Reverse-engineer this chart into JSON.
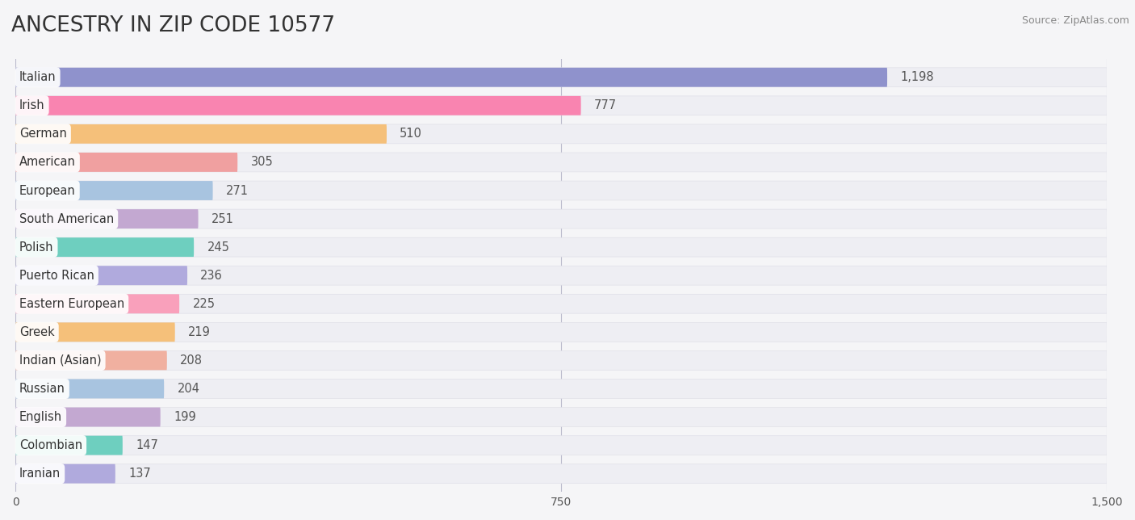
{
  "title": "ANCESTRY IN ZIP CODE 10577",
  "source": "Source: ZipAtlas.com",
  "categories": [
    "Italian",
    "Irish",
    "German",
    "American",
    "European",
    "South American",
    "Polish",
    "Puerto Rican",
    "Eastern European",
    "Greek",
    "Indian (Asian)",
    "Russian",
    "English",
    "Colombian",
    "Iranian"
  ],
  "values": [
    1198,
    777,
    510,
    305,
    271,
    251,
    245,
    236,
    225,
    219,
    208,
    204,
    199,
    147,
    137
  ],
  "colors": [
    "#8f92cc",
    "#f984b0",
    "#f5c07a",
    "#f0a0a0",
    "#a8c4e0",
    "#c3a8d1",
    "#6ecfbf",
    "#b0aadd",
    "#f9a0bb",
    "#f5c07a",
    "#f0b0a0",
    "#a8c4e0",
    "#c3a8d1",
    "#6ecfbf",
    "#b0aadd"
  ],
  "row_bg_color": "#ebebf0",
  "row_bg_full_color": "#f0f0f5",
  "xlim": [
    0,
    1500
  ],
  "xticks": [
    0,
    750,
    1500
  ],
  "background_color": "#f5f5f7",
  "title_fontsize": 19,
  "label_fontsize": 10.5,
  "value_fontsize": 10.5,
  "tick_fontsize": 10
}
